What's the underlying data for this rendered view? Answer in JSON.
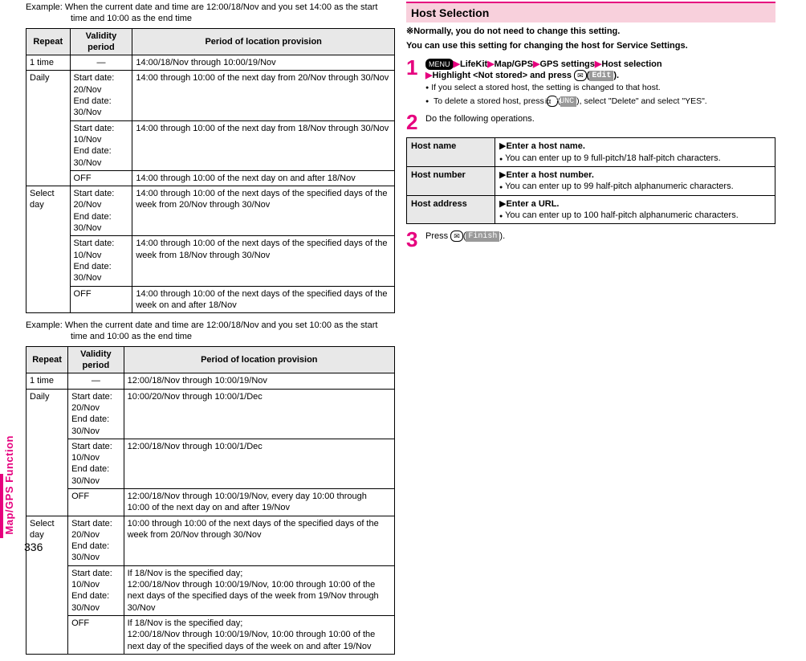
{
  "sideTab": "Map/GPS Function",
  "pageNumber": "336",
  "left": {
    "example1": "Example: When the current date and time are 12:00/18/Nov and you set 14:00 as the start time and 10:00 as the end time",
    "example2": "Example: When the current date and time are 12:00/18/Nov and you set 10:00 as the start time and 10:00 as the end time",
    "headers": {
      "repeat": "Repeat",
      "validity": "Validity period",
      "period": "Period of location provision"
    },
    "table1": [
      {
        "repeat": "1 time",
        "validity": "—",
        "centerV": true,
        "period": "14:00/18/Nov through 10:00/19/Nov"
      },
      {
        "repeat": "Daily",
        "rowspan": 3,
        "validity": "Start date: 20/Nov\nEnd date: 30/Nov",
        "period": "14:00 through 10:00 of the next day from 20/Nov through 30/Nov"
      },
      {
        "validity": "Start date: 10/Nov\nEnd date: 30/Nov",
        "period": "14:00 through 10:00 of the next day from 18/Nov through 30/Nov"
      },
      {
        "validity": "OFF",
        "period": "14:00 through 10:00 of the next day on and after 18/Nov"
      },
      {
        "repeat": "Select day",
        "rowspan": 3,
        "validity": "Start date: 20/Nov\nEnd date: 30/Nov",
        "period": "14:00 through 10:00 of the next days of the specified days of the week from 20/Nov through 30/Nov"
      },
      {
        "validity": "Start date: 10/Nov\nEnd date: 30/Nov",
        "period": "14:00 through 10:00 of the next days of the specified days of the week from 18/Nov through 30/Nov"
      },
      {
        "validity": "OFF",
        "period": "14:00 through 10:00 of the next days of the specified days of the week on and after 18/Nov"
      }
    ],
    "table2": [
      {
        "repeat": "1 time",
        "validity": "—",
        "centerV": true,
        "period": "12:00/18/Nov through 10:00/19/Nov"
      },
      {
        "repeat": "Daily",
        "rowspan": 3,
        "validity": "Start date: 20/Nov\nEnd date: 30/Nov",
        "period": "10:00/20/Nov through 10:00/1/Dec"
      },
      {
        "validity": "Start date: 10/Nov\nEnd date: 30/Nov",
        "period": "12:00/18/Nov through 10:00/1/Dec"
      },
      {
        "validity": "OFF",
        "period": "12:00/18/Nov through 10:00/19/Nov, every day 10:00 through 10:00 of the next day on and after 19/Nov"
      },
      {
        "repeat": "Select day",
        "rowspan": 3,
        "validity": "Start date: 20/Nov\nEnd date: 30/Nov",
        "period": "10:00 through 10:00 of the next days of the specified days of the week from 20/Nov through 30/Nov"
      },
      {
        "validity": "Start date: 10/Nov\nEnd date: 30/Nov",
        "period": "If 18/Nov is the specified day;\n12:00/18/Nov through 10:00/19/Nov, 10:00 through 10:00 of the next days of the specified days of the week from 19/Nov through 30/Nov"
      },
      {
        "validity": "OFF",
        "period": "If 18/Nov is the specified day;\n12:00/18/Nov through 10:00/19/Nov, 10:00 through 10:00 of the next day of the specified days of the week on and after 19/Nov"
      }
    ]
  },
  "right": {
    "heading": "Host Selection",
    "note": "※Normally, you do not need to change this setting.",
    "lead": "You can use this setting for changing the host for Service Settings.",
    "step1": {
      "menuKey": "MENU",
      "pathA": "LifeKit",
      "pathB": "Map/GPS",
      "pathC": "GPS settings",
      "pathD": "Host selection",
      "line2a": "Highlight <Not stored> and press ",
      "mailKey": "✉",
      "softEdit": "Edit",
      "bullet1": "If you select a stored host, the setting is changed to that host.",
      "bullet2a": "To delete a stored host, press ",
      "irKey": "iα",
      "softFunc": "FUNC",
      "bullet2b": ", select \"Delete\" and select \"YES\"."
    },
    "step2": {
      "text": "Do the following operations."
    },
    "hostTable": [
      {
        "label": "Host name",
        "action": "Enter a host name.",
        "note": "You can enter up to 9 full-pitch/18 half-pitch characters."
      },
      {
        "label": "Host number",
        "action": "Enter a host number.",
        "note": "You can enter up to 99 half-pitch alphanumeric characters."
      },
      {
        "label": "Host address",
        "action": "Enter a URL.",
        "note": "You can enter up to 100 half-pitch alphanumeric characters."
      }
    ],
    "step3": {
      "textA": "Press ",
      "mailKey": "✉",
      "softFinish": "Finish",
      "textB": "."
    }
  }
}
